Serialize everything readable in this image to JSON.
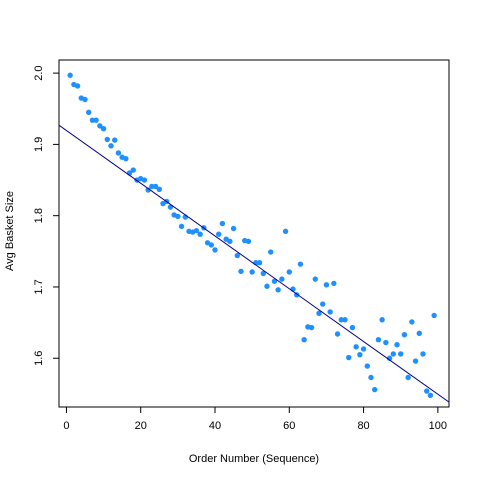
{
  "chart_data": {
    "type": "scatter",
    "title": "",
    "xlabel": "Order Number (Sequence)",
    "ylabel": "Avg Basket Size",
    "xlim": [
      -2,
      103
    ],
    "ylim": [
      1.5316,
      2.0184
    ],
    "x_ticks": [
      0,
      20,
      40,
      60,
      80,
      100
    ],
    "y_ticks": [
      1.6,
      1.7,
      1.8,
      1.9,
      2.0
    ],
    "x_tick_labels": [
      "0",
      "20",
      "40",
      "60",
      "80",
      "100"
    ],
    "y_tick_labels": [
      "1.6",
      "1.7",
      "1.8",
      "1.9",
      "2.0"
    ],
    "grid": false,
    "point_color": "#1E90FF",
    "line_color": "#00008B",
    "fit_line": {
      "intercept": 1.9195,
      "slope": -0.0037
    },
    "points": [
      [
        1,
        1.997
      ],
      [
        2,
        1.984
      ],
      [
        3,
        1.982
      ],
      [
        4,
        1.965
      ],
      [
        5,
        1.963
      ],
      [
        6,
        1.945
      ],
      [
        7,
        1.934
      ],
      [
        8,
        1.934
      ],
      [
        9,
        1.926
      ],
      [
        10,
        1.922
      ],
      [
        11,
        1.907
      ],
      [
        12,
        1.898
      ],
      [
        13,
        1.906
      ],
      [
        14,
        1.888
      ],
      [
        15,
        1.882
      ],
      [
        16,
        1.88
      ],
      [
        17,
        1.86
      ],
      [
        18,
        1.864
      ],
      [
        19,
        1.85
      ],
      [
        20,
        1.852
      ],
      [
        21,
        1.85
      ],
      [
        22,
        1.836
      ],
      [
        23,
        1.841
      ],
      [
        24,
        1.841
      ],
      [
        25,
        1.837
      ],
      [
        26,
        1.817
      ],
      [
        27,
        1.82
      ],
      [
        28,
        1.812
      ],
      [
        29,
        1.801
      ],
      [
        30,
        1.799
      ],
      [
        31,
        1.785
      ],
      [
        32,
        1.798
      ],
      [
        33,
        1.778
      ],
      [
        34,
        1.777
      ],
      [
        35,
        1.779
      ],
      [
        36,
        1.774
      ],
      [
        37,
        1.783
      ],
      [
        38,
        1.762
      ],
      [
        39,
        1.759
      ],
      [
        40,
        1.752
      ],
      [
        41,
        1.774
      ],
      [
        42,
        1.789
      ],
      [
        43,
        1.767
      ],
      [
        44,
        1.764
      ],
      [
        45,
        1.782
      ],
      [
        46,
        1.744
      ],
      [
        47,
        1.722
      ],
      [
        48,
        1.765
      ],
      [
        49,
        1.764
      ],
      [
        50,
        1.721
      ],
      [
        51,
        1.734
      ],
      [
        52,
        1.734
      ],
      [
        53,
        1.719
      ],
      [
        54,
        1.701
      ],
      [
        55,
        1.749
      ],
      [
        56,
        1.708
      ],
      [
        57,
        1.696
      ],
      [
        58,
        1.711
      ],
      [
        59,
        1.778
      ],
      [
        60,
        1.721
      ],
      [
        61,
        1.697
      ],
      [
        62,
        1.689
      ],
      [
        63,
        1.732
      ],
      [
        64,
        1.626
      ],
      [
        65,
        1.644
      ],
      [
        66,
        1.643
      ],
      [
        67,
        1.711
      ],
      [
        68,
        1.663
      ],
      [
        69,
        1.676
      ],
      [
        70,
        1.703
      ],
      [
        71,
        1.665
      ],
      [
        72,
        1.705
      ],
      [
        73,
        1.634
      ],
      [
        74,
        1.654
      ],
      [
        75,
        1.654
      ],
      [
        76,
        1.601
      ],
      [
        77,
        1.643
      ],
      [
        78,
        1.616
      ],
      [
        79,
        1.605
      ],
      [
        80,
        1.613
      ],
      [
        81,
        1.589
      ],
      [
        82,
        1.573
      ],
      [
        83,
        1.556
      ],
      [
        84,
        1.626
      ],
      [
        85,
        1.654
      ],
      [
        86,
        1.622
      ],
      [
        87,
        1.6
      ],
      [
        88,
        1.606
      ],
      [
        89,
        1.619
      ],
      [
        90,
        1.606
      ],
      [
        91,
        1.633
      ],
      [
        92,
        1.573
      ],
      [
        93,
        1.651
      ],
      [
        94,
        1.596
      ],
      [
        95,
        1.635
      ],
      [
        96,
        1.606
      ],
      [
        97,
        1.554
      ],
      [
        98,
        1.548
      ],
      [
        99,
        1.66
      ]
    ]
  }
}
